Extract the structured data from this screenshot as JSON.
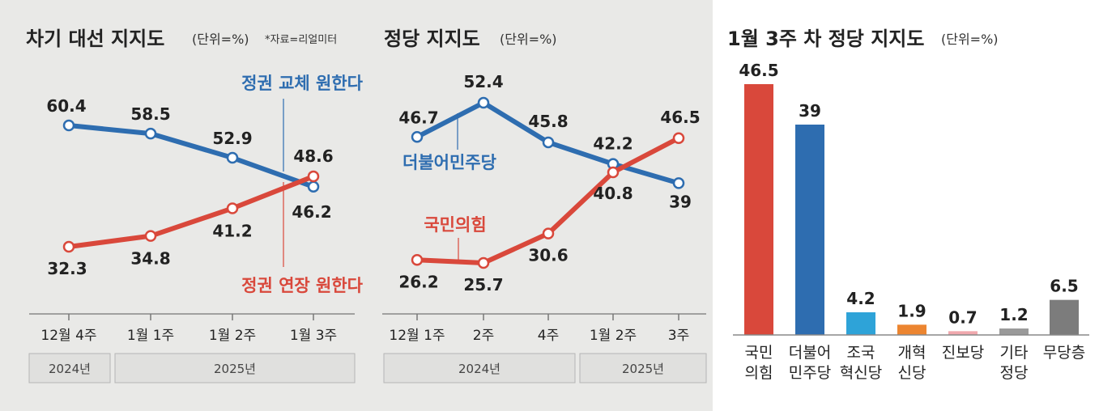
{
  "colors": {
    "blue": "#2e6db0",
    "red": "#d9483b",
    "sky": "#2ea3d8",
    "orange": "#ec8530",
    "pink": "#f0a8ad",
    "gray": "#9a9a9a",
    "dark_gray": "#7c7c7c"
  },
  "chart_data": [
    {
      "type": "line",
      "title": "차기 대선 지지도",
      "unit": "(단위=%)",
      "note": "*자료=리얼미터",
      "categories": [
        "12월 4주",
        "1월 1주",
        "1월 2주",
        "1월 3주"
      ],
      "years": [
        "2024년",
        "2025년"
      ],
      "series": [
        {
          "name": "정권 교체 원한다",
          "color": "#2e6db0",
          "values": [
            60.4,
            58.5,
            52.9,
            46.2
          ]
        },
        {
          "name": "정권 연장 원한다",
          "color": "#d9483b",
          "values": [
            32.3,
            34.8,
            41.2,
            48.6
          ]
        }
      ]
    },
    {
      "type": "line",
      "title": "정당 지지도",
      "unit": "(단위=%)",
      "categories": [
        "12월 1주",
        "2주",
        "4주",
        "1월 2주",
        "3주"
      ],
      "years": [
        "2024년",
        "2025년"
      ],
      "series": [
        {
          "name": "더불어민주당",
          "color": "#2e6db0",
          "values": [
            46.7,
            52.4,
            45.8,
            42.2,
            39
          ]
        },
        {
          "name": "국민의힘",
          "color": "#d9483b",
          "values": [
            26.2,
            25.7,
            30.6,
            40.8,
            46.5
          ]
        }
      ]
    },
    {
      "type": "bar",
      "title": "1월 3주 차 정당 지지도",
      "unit": "(단위=%)",
      "categories": [
        [
          "국민",
          "의힘"
        ],
        [
          "더불어",
          "민주당"
        ],
        [
          "조국",
          "혁신당"
        ],
        [
          "개혁",
          "신당"
        ],
        [
          "진보당"
        ],
        [
          "기타",
          "정당"
        ],
        [
          "무당층"
        ]
      ],
      "values": [
        46.5,
        39,
        4.2,
        1.9,
        0.7,
        1.2,
        6.5
      ],
      "value_labels": [
        "46.5",
        "39",
        "4.2",
        "1.9",
        "0.7",
        "1.2",
        "6.5"
      ],
      "colors": [
        "#d9483b",
        "#2e6db0",
        "#2ea3d8",
        "#ec8530",
        "#f0a8ad",
        "#9a9a9a",
        "#7c7c7c"
      ]
    }
  ]
}
